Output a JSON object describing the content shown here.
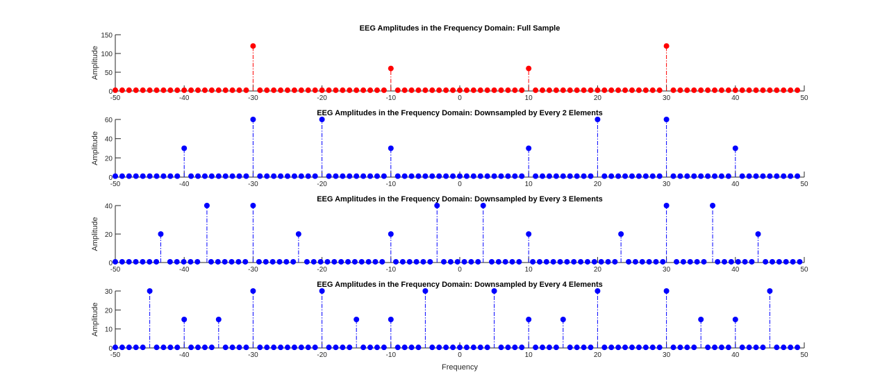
{
  "chart_data": [
    {
      "type": "stem",
      "title": "EEG Amplitudes in the Frequency Domain: Full Sample",
      "xlabel": "",
      "ylabel": "Amplitude",
      "xlim": [
        -50,
        50
      ],
      "ylim": [
        0,
        150
      ],
      "yticks": [
        0,
        50,
        100,
        150
      ],
      "xticks": [
        -50,
        -40,
        -30,
        -20,
        -10,
        0,
        10,
        20,
        30,
        40,
        50
      ],
      "color": "#ff0000",
      "x_range": [
        -50,
        49
      ],
      "x_step": 1,
      "baseline_value": 2,
      "peaks": [
        {
          "x": -30,
          "y": 120
        },
        {
          "x": -10,
          "y": 60
        },
        {
          "x": 10,
          "y": 60
        },
        {
          "x": 30,
          "y": 120
        }
      ]
    },
    {
      "type": "stem",
      "title": "EEG Amplitudes in the Frequency Domain: Downsampled by Every 2 Elements",
      "xlabel": "",
      "ylabel": "Amplitude",
      "xlim": [
        -50,
        50
      ],
      "ylim": [
        0,
        60
      ],
      "yticks": [
        0,
        20,
        40,
        60
      ],
      "xticks": [
        -50,
        -40,
        -30,
        -20,
        -10,
        0,
        10,
        20,
        30,
        40,
        50
      ],
      "color": "#0000ff",
      "x_range": [
        -50,
        49
      ],
      "x_step": 1,
      "baseline_value": 1,
      "peaks": [
        {
          "x": -40,
          "y": 30
        },
        {
          "x": -30,
          "y": 60
        },
        {
          "x": -20,
          "y": 60
        },
        {
          "x": -10,
          "y": 30
        },
        {
          "x": 10,
          "y": 30
        },
        {
          "x": 20,
          "y": 60
        },
        {
          "x": 30,
          "y": 60
        },
        {
          "x": 40,
          "y": 30
        }
      ]
    },
    {
      "type": "stem",
      "title": "EEG Amplitudes in the Frequency Domain: Downsampled by Every 3 Elements",
      "xlabel": "",
      "ylabel": "Amplitude",
      "xlim": [
        -50,
        50
      ],
      "ylim": [
        0,
        40
      ],
      "yticks": [
        0,
        20,
        40
      ],
      "xticks": [
        -50,
        -40,
        -30,
        -20,
        -10,
        0,
        10,
        20,
        30,
        40,
        50
      ],
      "color": "#0000ff",
      "x_range": [
        -50,
        49.334
      ],
      "x_step": 0.99338,
      "baseline_value": 0.5,
      "peaks": [
        {
          "x": -43.4,
          "y": 20
        },
        {
          "x": -36.7,
          "y": 40
        },
        {
          "x": -30,
          "y": 40
        },
        {
          "x": -23.4,
          "y": 20
        },
        {
          "x": -10,
          "y": 20
        },
        {
          "x": -3.3,
          "y": 40
        },
        {
          "x": 3.4,
          "y": 40
        },
        {
          "x": 10,
          "y": 20
        },
        {
          "x": 23.4,
          "y": 20
        },
        {
          "x": 30,
          "y": 40
        },
        {
          "x": 36.7,
          "y": 40
        },
        {
          "x": 43.3,
          "y": 20
        }
      ]
    },
    {
      "type": "stem",
      "title": "EEG Amplitudes in the Frequency Domain: Downsampled by Every 4 Elements",
      "xlabel": "Frequency",
      "ylabel": "Amplitude",
      "xlim": [
        -50,
        50
      ],
      "ylim": [
        0,
        30
      ],
      "yticks": [
        0,
        10,
        20,
        30
      ],
      "xticks": [
        -50,
        -40,
        -30,
        -20,
        -10,
        0,
        10,
        20,
        30,
        40,
        50
      ],
      "color": "#0000ff",
      "x_range": [
        -50,
        49
      ],
      "x_step": 1,
      "baseline_value": 0.3,
      "peaks": [
        {
          "x": -45,
          "y": 30
        },
        {
          "x": -40,
          "y": 15
        },
        {
          "x": -35,
          "y": 15
        },
        {
          "x": -30,
          "y": 30
        },
        {
          "x": -20,
          "y": 30
        },
        {
          "x": -15,
          "y": 15
        },
        {
          "x": -10,
          "y": 15
        },
        {
          "x": -5,
          "y": 30
        },
        {
          "x": 5,
          "y": 30
        },
        {
          "x": 10,
          "y": 15
        },
        {
          "x": 15,
          "y": 15
        },
        {
          "x": 20,
          "y": 30
        },
        {
          "x": 30,
          "y": 30
        },
        {
          "x": 35,
          "y": 15
        },
        {
          "x": 40,
          "y": 15
        },
        {
          "x": 45,
          "y": 30
        }
      ]
    }
  ]
}
